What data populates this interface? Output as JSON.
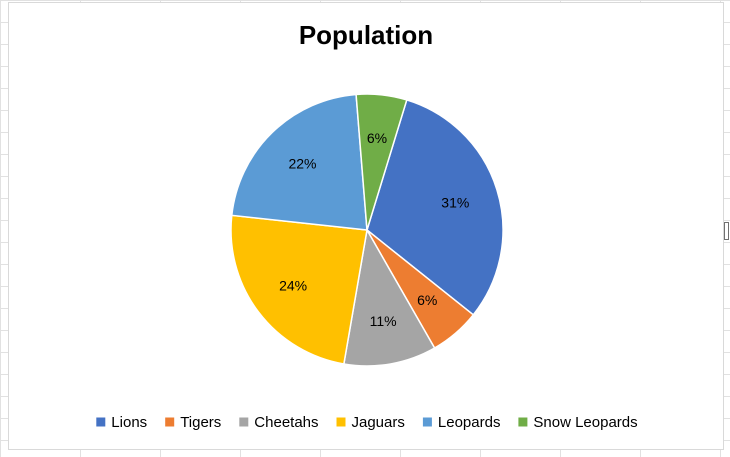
{
  "chart_data": {
    "type": "pie",
    "title": "Population",
    "categories": [
      "Lions",
      "Tigers",
      "Cheetahs",
      "Jaguars",
      "Leopards",
      "Snow Leopards"
    ],
    "values": [
      31,
      6,
      11,
      24,
      22,
      6
    ],
    "data_labels": [
      "31%",
      "6%",
      "11%",
      "24%",
      "22%",
      "6%"
    ],
    "colors": [
      "#4472C4",
      "#ED7D31",
      "#A5A5A5",
      "#FFC000",
      "#5B9BD5",
      "#70AD47"
    ],
    "start_angle_deg": 17,
    "direction": "clockwise",
    "legend_position": "bottom"
  }
}
